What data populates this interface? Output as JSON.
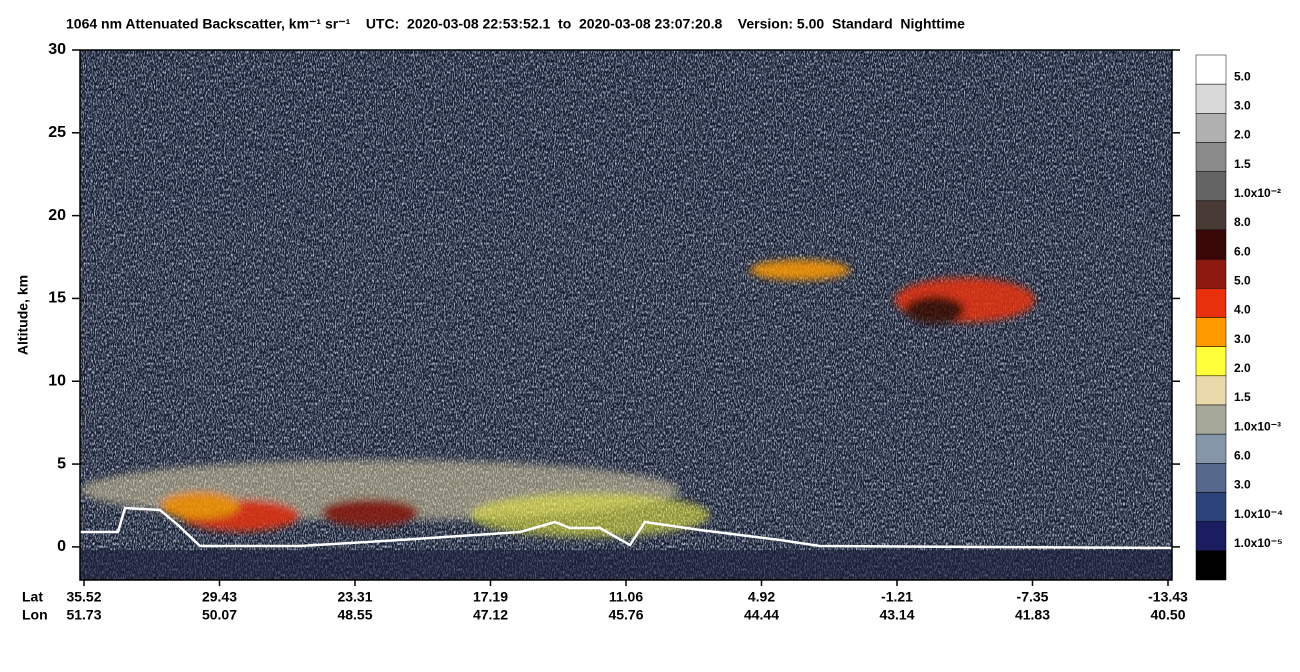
{
  "chart_data": {
    "type": "curtain",
    "title": "1064 nm Attenuated Backscatter, km⁻¹ sr⁻¹    UTC:  2020-03-08 22:53:52.1  to  2020-03-08 23:07:20.8    Version: 5.00  Standard  Nighttime",
    "y_label": "Altitude, km",
    "ylim": [
      -2,
      30
    ],
    "yticks": [
      0,
      5,
      10,
      15,
      20,
      25,
      30
    ],
    "x_rows": [
      "Lat",
      "Lon"
    ],
    "x_labels": [
      [
        "35.52",
        "51.73"
      ],
      [
        "29.43",
        "50.07"
      ],
      [
        "23.31",
        "48.55"
      ],
      [
        "17.19",
        "47.12"
      ],
      [
        "11.06",
        "45.76"
      ],
      [
        "4.92",
        "44.44"
      ],
      [
        "-1.21",
        "43.14"
      ],
      [
        "-7.35",
        "41.83"
      ],
      [
        "-13.43",
        "40.50"
      ]
    ],
    "colorbar": {
      "labels": [
        "5.0",
        "3.0",
        "2.0",
        "1.5",
        "1.0x10⁻²",
        "8.0",
        "6.0",
        "5.0",
        "4.0",
        "3.0",
        "2.0",
        "1.5",
        "1.0x10⁻³",
        "6.0",
        "3.0",
        "1.0x10⁻⁴",
        "1.0x10⁻⁵"
      ],
      "colors": [
        "#ffffff",
        "#d9d9d9",
        "#b0b0b0",
        "#8a8a8a",
        "#646464",
        "#4a3a36",
        "#3a0806",
        "#8c1a10",
        "#e8300c",
        "#ff9a00",
        "#ffff3a",
        "#e8d8aa",
        "#a6a89a",
        "#8496a8",
        "#56698c",
        "#2c447a",
        "#1c1c60",
        "#000000"
      ]
    }
  }
}
